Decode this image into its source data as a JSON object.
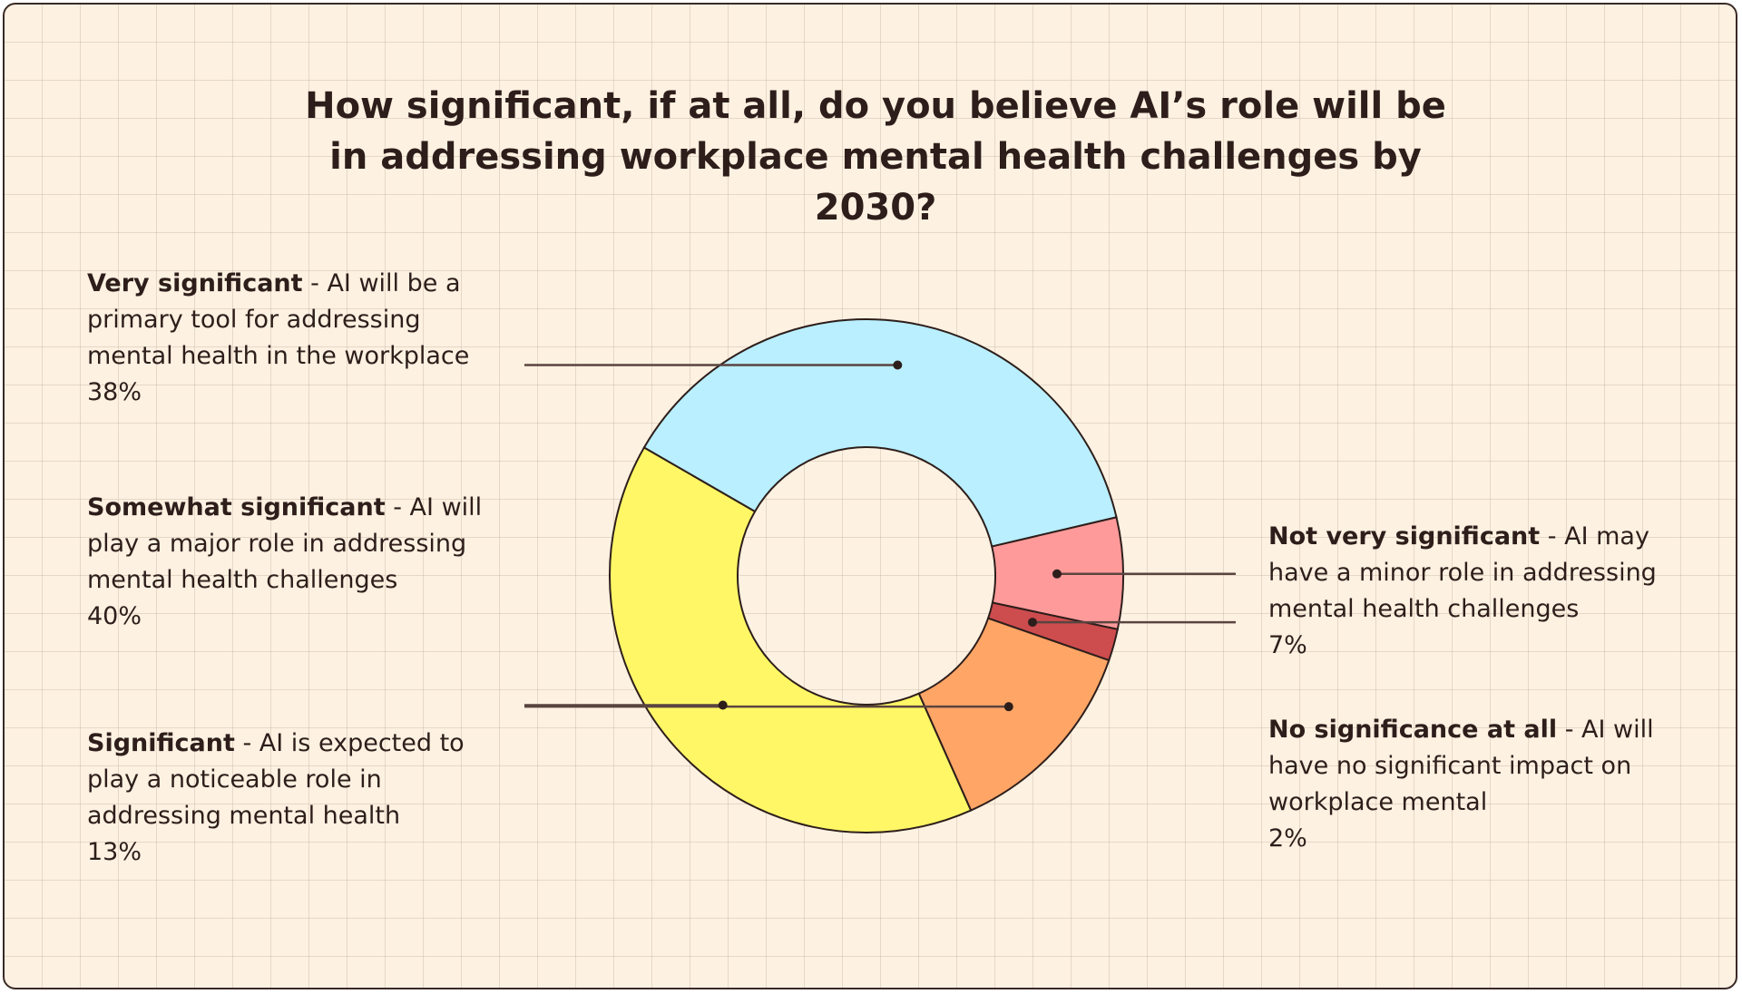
{
  "chart_data": {
    "type": "pie",
    "title": "How significant, if at all, do you believe AI’s role will be in addressing workplace mental health challenges by 2030?",
    "slices": [
      {
        "category": "Very significant",
        "description": " - AI will be a primary tool for addressing mental health in the workplace",
        "percent_label": "38%",
        "value": 38,
        "color": "#b9efff"
      },
      {
        "category": "Not very significant",
        "description": " - AI may have a minor role in addressing mental health challenges",
        "percent_label": "7%",
        "value": 7,
        "color": "#ff9a9a"
      },
      {
        "category": "No significance at all",
        "description": " - AI will have no significant impact on workplace mental",
        "percent_label": "2%",
        "value": 2,
        "color": "#cd4c4e"
      },
      {
        "category": "Significant",
        "description": " - AI is expected to play a noticeable role in addressing mental health",
        "percent_label": "13%",
        "value": 13,
        "color": "#ffa566"
      },
      {
        "category": "Somewhat significant",
        "description": " - AI will play a major role in addressing mental health challenges",
        "percent_label": "40%",
        "value": 40,
        "color": "#fff766"
      }
    ]
  }
}
